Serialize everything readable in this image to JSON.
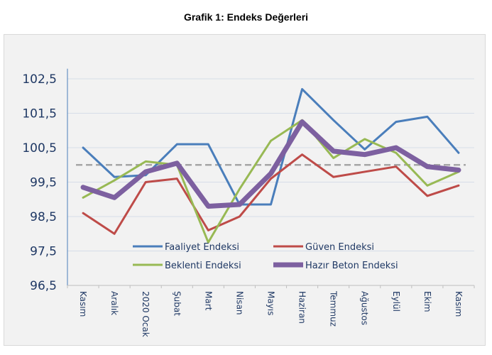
{
  "chart_data": {
    "type": "line",
    "title": "Grafik 1: Endeks Değerleri",
    "xlabel": "",
    "ylabel": "",
    "ylim": [
      96.5,
      103
    ],
    "yticks": [
      "102,5",
      "101,5",
      "100,5",
      "99,5",
      "98,5",
      "97,5",
      "96,5"
    ],
    "ytick_values": [
      102.5,
      101.5,
      100.5,
      99.5,
      98.5,
      97.5,
      96.5
    ],
    "reference_line": 100,
    "categories": [
      "Kasım",
      "Aralık",
      "2020 Ocak",
      "Şubat",
      "Mart",
      "Nisan",
      "Mayıs",
      "Haziran",
      "Temmuz",
      "Ağustos",
      "Eylül",
      "Ekim",
      "Kasım"
    ],
    "legend_position": "bottom-inside",
    "series": [
      {
        "name": "Faaliyet Endeksi",
        "color": "#4a7ebb",
        "width": 3,
        "values": [
          100.5,
          99.65,
          99.7,
          100.6,
          100.6,
          98.85,
          98.85,
          102.2,
          101.3,
          100.45,
          101.25,
          101.4,
          100.35
        ]
      },
      {
        "name": "Güven Endeksi",
        "color": "#be4b48",
        "width": 3,
        "values": [
          98.6,
          98.0,
          99.5,
          99.6,
          98.1,
          98.5,
          99.6,
          100.3,
          99.65,
          99.8,
          99.95,
          99.1,
          99.4
        ]
      },
      {
        "name": "Beklenti Endeksi",
        "color": "#98b954",
        "width": 3,
        "values": [
          99.05,
          99.55,
          100.1,
          100.0,
          97.75,
          99.3,
          100.7,
          101.3,
          100.2,
          100.75,
          100.35,
          99.4,
          99.8
        ]
      },
      {
        "name": "Hazır Beton Endeksi",
        "color": "#7d60a0",
        "width": 7,
        "values": [
          99.35,
          99.05,
          99.8,
          100.05,
          98.8,
          98.85,
          99.75,
          101.25,
          100.4,
          100.3,
          100.5,
          99.95,
          99.85
        ]
      }
    ]
  }
}
